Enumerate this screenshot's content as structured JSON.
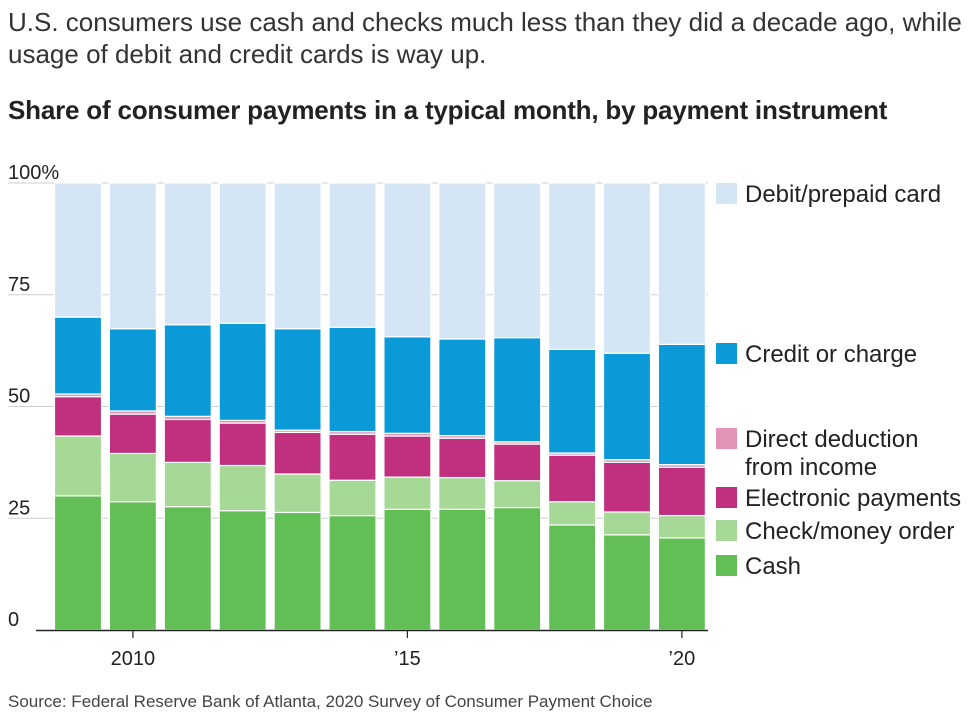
{
  "subtitle": "U.S. consumers use cash and checks much less than they did a decade ago, while usage of debit and credit cards is way up.",
  "heading": "Share of consumer payments in a typical month, by payment instrument",
  "source": "Source: Federal Reserve Bank of Atlanta, 2020 Survey of Consumer Payment Choice",
  "chart_data": {
    "type": "bar",
    "stacked": true,
    "grid": true,
    "legend_position": "right",
    "x": [
      2009,
      2010,
      2011,
      2012,
      2013,
      2014,
      2015,
      2016,
      2017,
      2018,
      2019,
      2020
    ],
    "x_tick_labels": [
      {
        "x": 2010,
        "label": "2010"
      },
      {
        "x": 2015,
        "label": "’15"
      },
      {
        "x": 2020,
        "label": "’20"
      }
    ],
    "ylim": [
      0,
      100
    ],
    "y_ticks": [
      {
        "value": 0,
        "label": "0"
      },
      {
        "value": 25,
        "label": "25"
      },
      {
        "value": 50,
        "label": "50"
      },
      {
        "value": 75,
        "label": "75"
      },
      {
        "value": 100,
        "label": "100%"
      }
    ],
    "series": [
      {
        "name": "Cash",
        "color": "#62bf55",
        "values": [
          30,
          28.7,
          27.6,
          26.7,
          26.3,
          25.6,
          27,
          27,
          27.4,
          23.5,
          21.3,
          20.6
        ]
      },
      {
        "name": "Check/money order",
        "color": "#a6d896",
        "values": [
          13.4,
          10.8,
          9.9,
          10.1,
          8.6,
          7.9,
          7.2,
          7.1,
          6,
          5.2,
          5.1,
          5
        ]
      },
      {
        "name": "Electronic payments",
        "color": "#c0307e",
        "values": [
          8.8,
          8.8,
          9.6,
          9.5,
          9.3,
          10.3,
          9.2,
          8.8,
          8.2,
          10.4,
          11.1,
          10.8
        ]
      },
      {
        "name": "Direct deduction\nfrom income",
        "color": "#e394b8",
        "values": [
          0.6,
          0.7,
          0.7,
          0.6,
          0.5,
          0.6,
          0.6,
          0.6,
          0.5,
          0.5,
          0.6,
          0.6
        ]
      },
      {
        "name": "Credit or charge",
        "color": "#0b9ad8",
        "values": [
          17.2,
          18.4,
          20.5,
          21.7,
          22.7,
          23.3,
          21.6,
          21.6,
          23.3,
          23.2,
          23.8,
          26.9
        ]
      },
      {
        "name": "Debit/prepaid card",
        "color": "#d4e6f6",
        "values": [
          30,
          32.6,
          31.7,
          31.4,
          32.6,
          32.3,
          34.4,
          34.9,
          34.6,
          37.2,
          38.1,
          36.1
        ]
      }
    ],
    "legend_order": [
      "Debit/prepaid card",
      "Credit or charge",
      "Direct deduction\nfrom income",
      "Electronic payments",
      "Check/money order",
      "Cash"
    ]
  }
}
